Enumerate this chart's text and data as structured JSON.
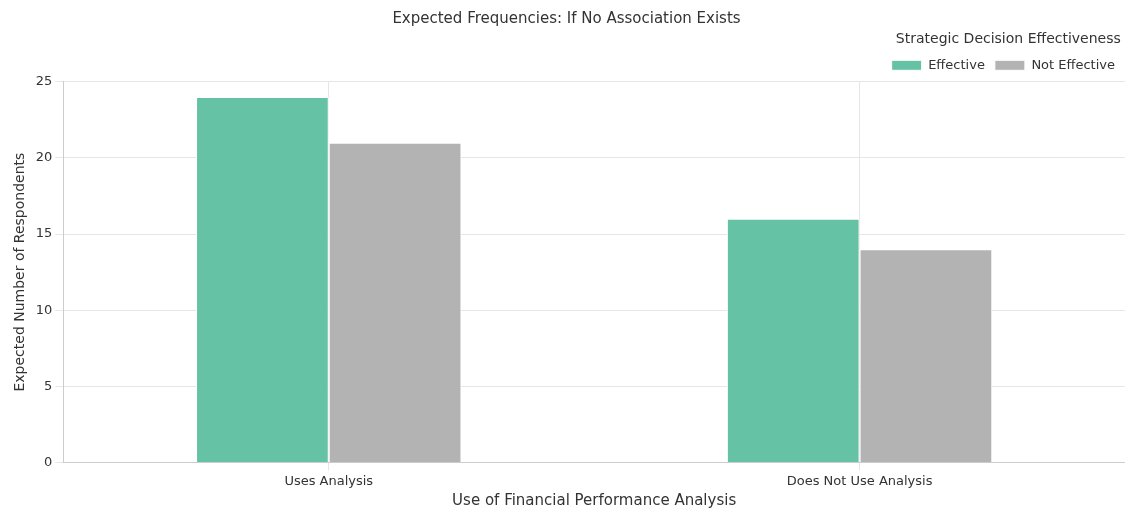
{
  "chart_data": {
    "type": "bar",
    "title": "Expected Frequencies: If No Association Exists",
    "xlabel": "Use of Financial Performance Analysis",
    "ylabel": "Expected Number of Respondents",
    "legend_title": "Strategic Decision Effectiveness",
    "categories": [
      "Uses Analysis",
      "Does Not Use Analysis"
    ],
    "series": [
      {
        "name": "Effective",
        "color": "#66c2a5",
        "values": [
          24,
          16
        ]
      },
      {
        "name": "Not Effective",
        "color": "#b3b3b3",
        "values": [
          21,
          14
        ]
      }
    ],
    "ylim": [
      0,
      25
    ],
    "yticks": [
      0,
      5,
      10,
      15,
      20,
      25
    ],
    "grid": true,
    "legend": "top right"
  }
}
